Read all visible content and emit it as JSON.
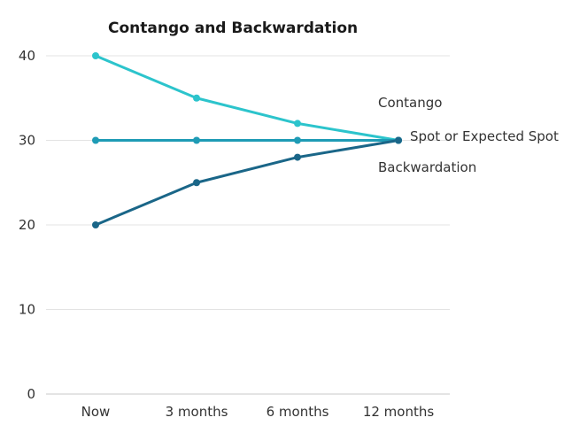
{
  "chart_data": {
    "type": "line",
    "title": "Contango and Backwardation",
    "xlabel": "",
    "ylabel": "",
    "categories": [
      "Now",
      "3 months",
      "6 months",
      "12 months"
    ],
    "ylim": [
      0,
      40
    ],
    "yticks": [
      0,
      10,
      20,
      30,
      40
    ],
    "grid": true,
    "legend": "inline labels at right end of lines",
    "series": [
      {
        "name": "Contango",
        "values": [
          40,
          35,
          32,
          30
        ],
        "color": "#2cc4cc"
      },
      {
        "name": "Spot or Expected Spot",
        "values": [
          30,
          30,
          30,
          30
        ],
        "color": "#1e9bb5"
      },
      {
        "name": "Backwardation",
        "values": [
          20,
          25,
          28,
          30
        ],
        "color": "#1a6688"
      }
    ]
  }
}
